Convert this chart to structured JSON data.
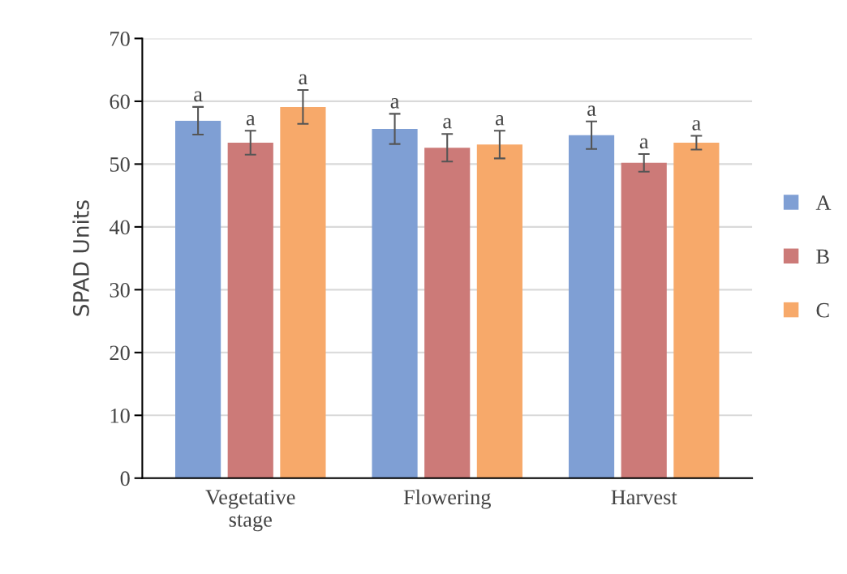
{
  "chart_data": {
    "type": "bar",
    "ylabel": "SPAD Units",
    "categories": [
      "Vegetative\nstage",
      "Flowering",
      "Harvest"
    ],
    "series": [
      {
        "name": "A",
        "color": "#7f9fd4",
        "values": [
          56.9,
          55.6,
          54.6
        ],
        "errors": [
          2.2,
          2.4,
          2.2
        ]
      },
      {
        "name": "B",
        "color": "#cc7a78",
        "values": [
          53.4,
          52.6,
          50.2
        ],
        "errors": [
          1.9,
          2.2,
          1.4
        ]
      },
      {
        "name": "C",
        "color": "#f7a96a",
        "values": [
          59.1,
          53.1,
          53.4
        ],
        "errors": [
          2.7,
          2.2,
          1.1
        ]
      }
    ],
    "annotations": [
      "a",
      "a",
      "a",
      "a",
      "a",
      "a",
      "a",
      "a",
      "a"
    ],
    "ylim": [
      0,
      70
    ],
    "yticks": [
      0,
      10,
      20,
      30,
      40,
      50,
      60,
      70
    ],
    "grid": "y",
    "legend": "right"
  }
}
